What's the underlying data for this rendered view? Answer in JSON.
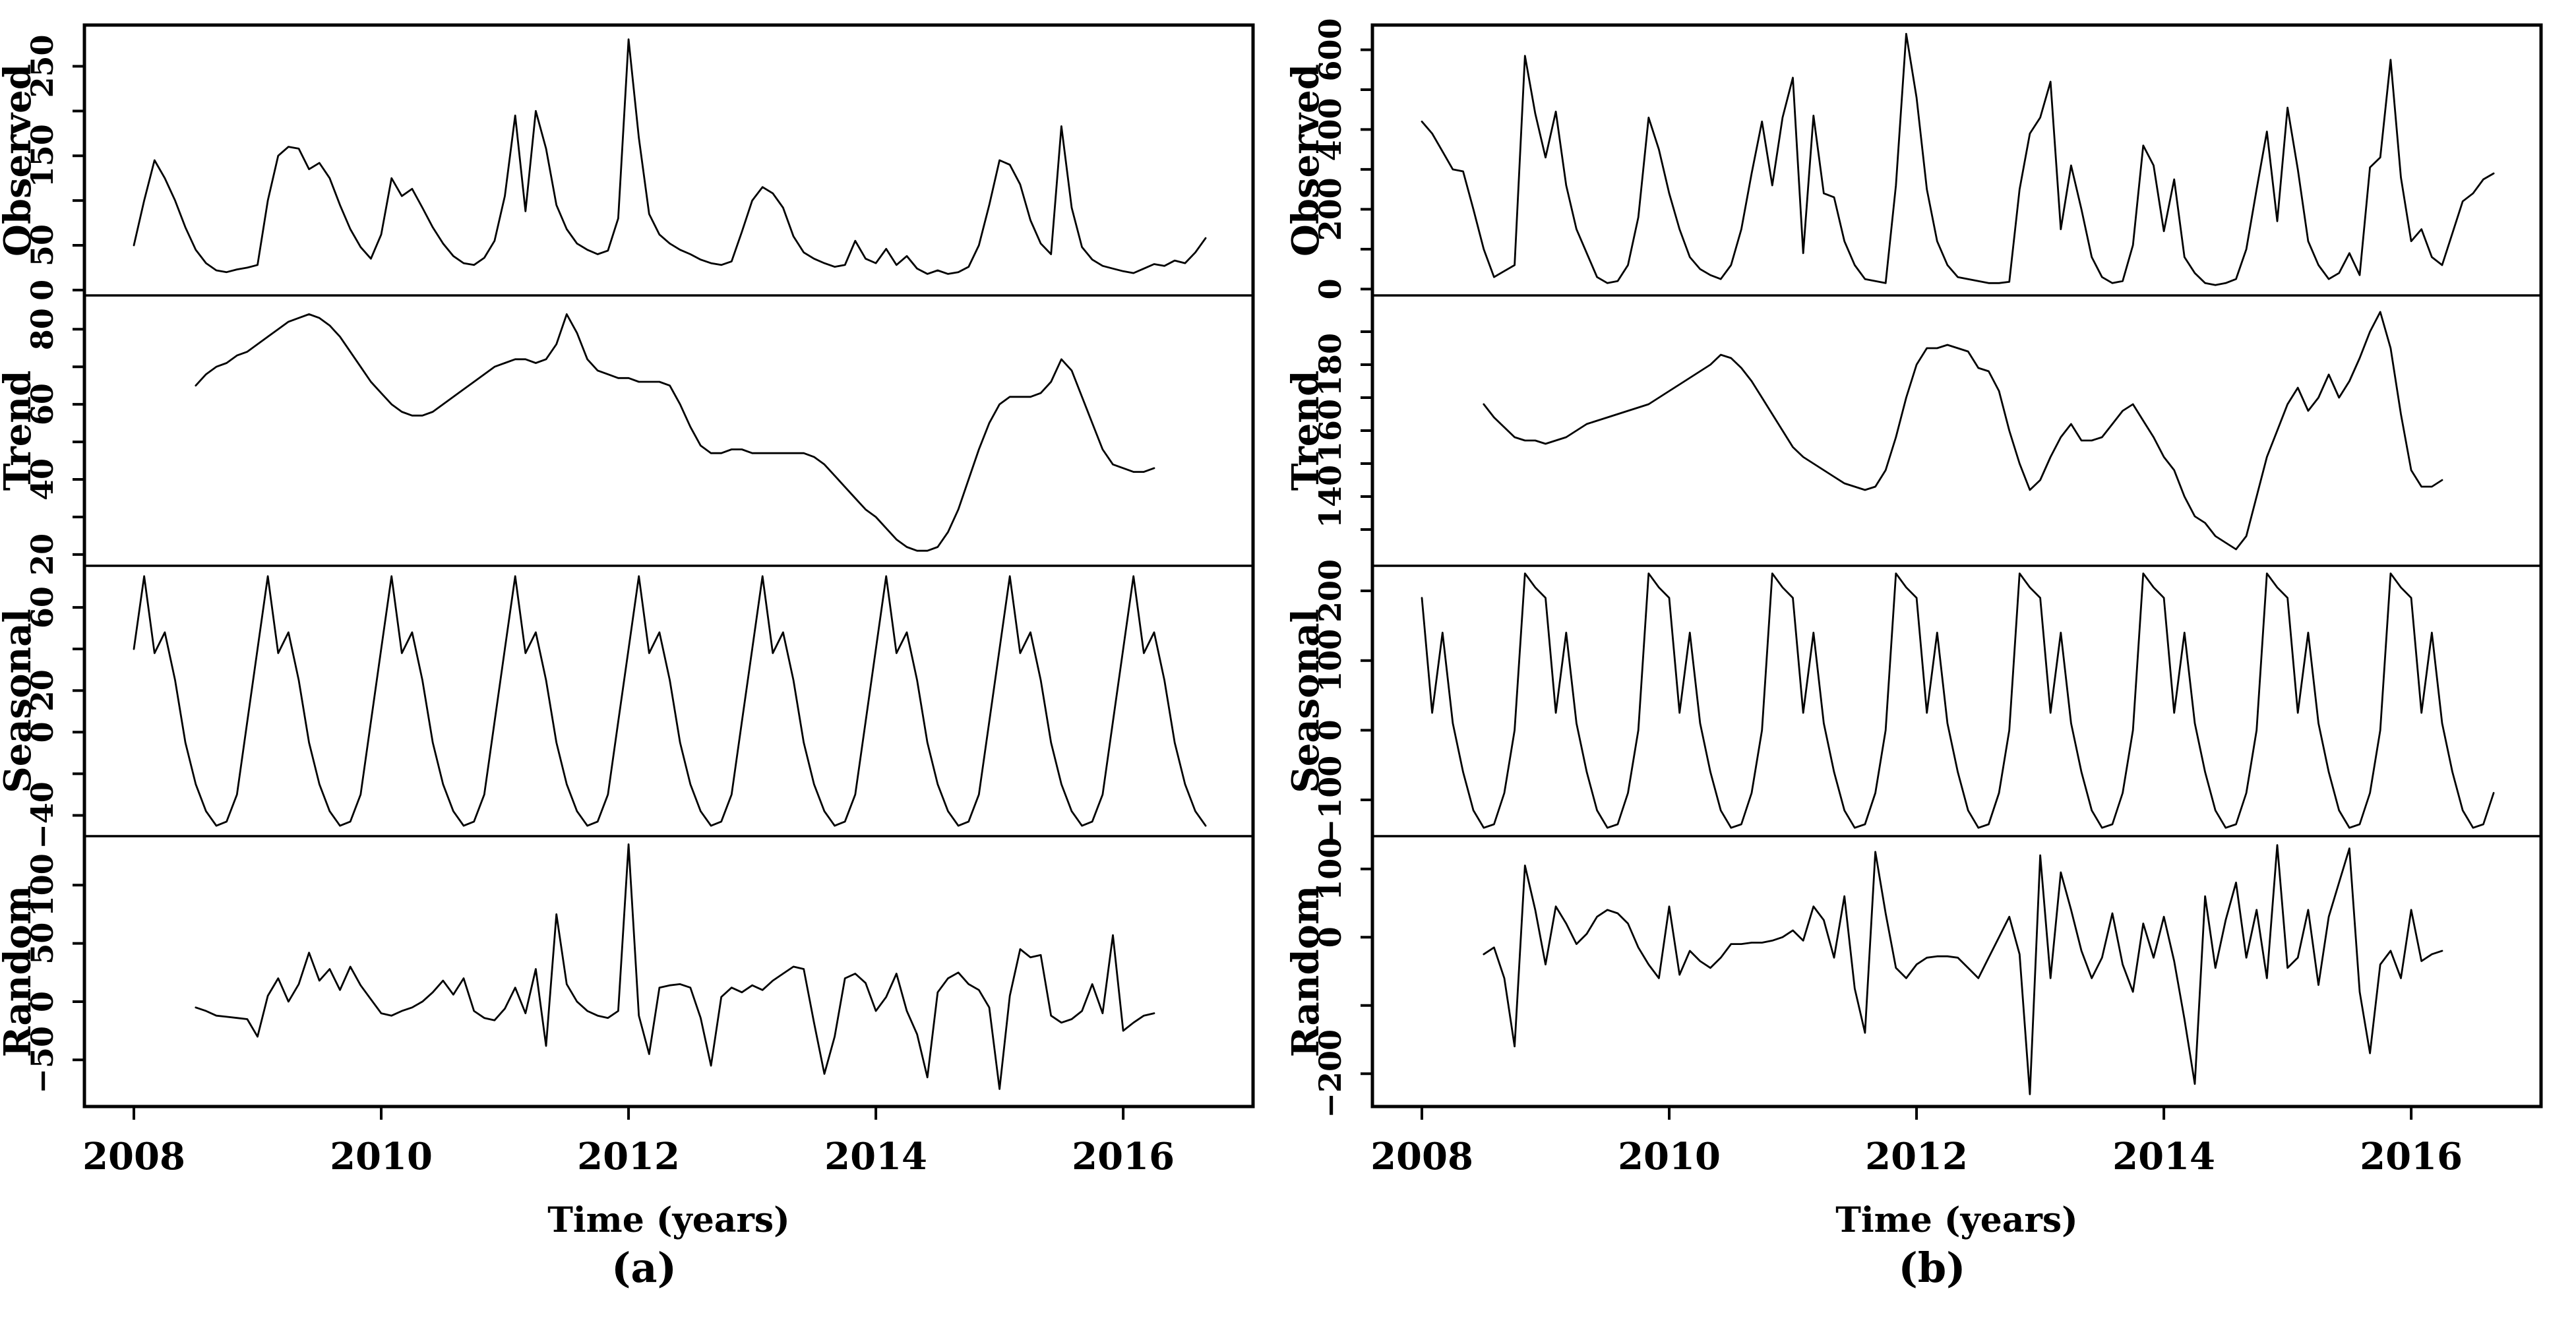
{
  "colors": {
    "line": "#000000",
    "background": "#ffffff",
    "text": "#000000"
  },
  "captions": {
    "a": "(a)",
    "b": "(b)"
  },
  "chart_data": [
    {
      "id": "a",
      "type": "line",
      "caption": "(a)",
      "xlabel": "Time (years)",
      "xlim": [
        2007.6,
        2017.05
      ],
      "xticks": [
        2008,
        2010,
        2012,
        2014,
        2016
      ],
      "x_unit": "monthly",
      "panels": [
        {
          "name": "Observed",
          "ylim": [
            -6,
            296
          ],
          "yticks": [
            {
              "v": 0,
              "t": "0"
            },
            {
              "v": 50,
              "t": "50"
            },
            {
              "v": 100,
              "t": ""
            },
            {
              "v": 150,
              "t": "150"
            },
            {
              "v": 200,
              "t": ""
            },
            {
              "v": 250,
              "t": "250"
            }
          ],
          "series_start": 2008.0,
          "values": [
            50,
            100,
            145,
            125,
            100,
            70,
            45,
            30,
            22,
            20,
            23,
            25,
            28,
            100,
            150,
            160,
            158,
            135,
            142,
            125,
            95,
            68,
            48,
            35,
            62,
            125,
            105,
            113,
            92,
            70,
            52,
            38,
            30,
            28,
            36,
            55,
            105,
            195,
            88,
            200,
            158,
            95,
            68,
            52,
            45,
            40,
            44,
            80,
            280,
            170,
            85,
            62,
            52,
            45,
            40,
            34,
            30,
            28,
            32,
            65,
            100,
            115,
            108,
            92,
            60,
            42,
            35,
            30,
            26,
            28,
            55,
            35,
            30,
            46,
            28,
            38,
            24,
            18,
            22,
            18,
            20,
            26,
            50,
            95,
            145,
            140,
            118,
            78,
            52,
            40,
            183,
            92,
            48,
            34,
            27,
            24,
            21,
            19,
            24,
            29,
            27,
            33,
            30,
            42,
            58
          ]
        },
        {
          "name": "Trend",
          "ylim": [
            17,
            89
          ],
          "yticks": [
            {
              "v": 20,
              "t": "20"
            },
            {
              "v": 30,
              "t": ""
            },
            {
              "v": 40,
              "t": "40"
            },
            {
              "v": 50,
              "t": ""
            },
            {
              "v": 60,
              "t": "60"
            },
            {
              "v": 70,
              "t": ""
            },
            {
              "v": 80,
              "t": "80"
            }
          ],
          "series_start": 2008.5,
          "values": [
            65,
            68,
            70,
            71,
            73,
            74,
            76,
            78,
            80,
            82,
            83,
            84,
            83,
            81,
            78,
            74,
            70,
            66,
            63,
            60,
            58,
            57,
            57,
            58,
            60,
            62,
            64,
            66,
            68,
            70,
            71,
            72,
            72,
            71,
            72,
            76,
            84,
            79,
            72,
            69,
            68,
            67,
            67,
            66,
            66,
            66,
            65,
            60,
            54,
            49,
            47,
            47,
            48,
            48,
            47,
            47,
            47,
            47,
            47,
            47,
            46,
            44,
            41,
            38,
            35,
            32,
            30,
            27,
            24,
            22,
            21,
            21,
            22,
            26,
            32,
            40,
            48,
            55,
            60,
            62,
            62,
            62,
            63,
            66,
            72,
            69,
            62,
            55,
            48,
            44,
            43,
            42,
            42,
            43
          ]
        },
        {
          "name": "Seasonal",
          "ylim": [
            -50,
            80
          ],
          "yticks": [
            {
              "v": -40,
              "t": "−40"
            },
            {
              "v": -20,
              "t": ""
            },
            {
              "v": 0,
              "t": "0"
            },
            {
              "v": 20,
              "t": "20"
            },
            {
              "v": 40,
              "t": ""
            },
            {
              "v": 60,
              "t": "60"
            }
          ],
          "series_start": 2008.0,
          "repeat_points": 105,
          "pattern": [
            40,
            75,
            38,
            48,
            25,
            -5,
            -25,
            -38,
            -45,
            -43,
            -30,
            5
          ]
        },
        {
          "name": "Random",
          "ylim": [
            -90,
            142
          ],
          "yticks": [
            {
              "v": -50,
              "t": "−50"
            },
            {
              "v": 0,
              "t": "0"
            },
            {
              "v": 50,
              "t": "50"
            },
            {
              "v": 100,
              "t": "100"
            }
          ],
          "series_start": 2008.5,
          "values": [
            -5,
            -8,
            -12,
            -13,
            -14,
            -15,
            -30,
            5,
            20,
            0,
            15,
            42,
            18,
            28,
            10,
            30,
            14,
            2,
            -10,
            -12,
            -8,
            -5,
            0,
            8,
            18,
            6,
            20,
            -8,
            -14,
            -16,
            -6,
            12,
            -10,
            28,
            -38,
            75,
            15,
            0,
            -8,
            -12,
            -14,
            -8,
            135,
            -12,
            -45,
            12,
            14,
            15,
            12,
            -14,
            -55,
            4,
            12,
            8,
            14,
            10,
            18,
            24,
            30,
            28,
            -18,
            -62,
            -30,
            20,
            24,
            16,
            -8,
            4,
            24,
            -8,
            -28,
            -65,
            8,
            20,
            25,
            15,
            10,
            -5,
            -75,
            5,
            45,
            38,
            40,
            -12,
            -18,
            -15,
            -8,
            15,
            -10,
            57,
            -25,
            -18,
            -12,
            -10
          ]
        }
      ]
    },
    {
      "id": "b",
      "type": "line",
      "caption": "(b)",
      "xlabel": "Time (years)",
      "xlim": [
        2007.6,
        2017.05
      ],
      "xticks": [
        2008,
        2010,
        2012,
        2014,
        2016
      ],
      "x_unit": "monthly",
      "panels": [
        {
          "name": "Observed",
          "ylim": [
            -16,
            662
          ],
          "yticks": [
            {
              "v": 0,
              "t": "0"
            },
            {
              "v": 100,
              "t": ""
            },
            {
              "v": 200,
              "t": "200"
            },
            {
              "v": 300,
              "t": ""
            },
            {
              "v": 400,
              "t": "400"
            },
            {
              "v": 500,
              "t": ""
            },
            {
              "v": 600,
              "t": "600"
            }
          ],
          "series_start": 2008.0,
          "values": [
            420,
            390,
            345,
            300,
            295,
            200,
            100,
            30,
            45,
            60,
            585,
            440,
            330,
            445,
            260,
            150,
            90,
            30,
            15,
            20,
            60,
            180,
            430,
            350,
            240,
            150,
            80,
            50,
            35,
            25,
            60,
            150,
            290,
            420,
            260,
            430,
            530,
            90,
            435,
            240,
            230,
            120,
            60,
            25,
            20,
            15,
            260,
            640,
            480,
            250,
            120,
            60,
            30,
            25,
            20,
            15,
            15,
            18,
            250,
            390,
            430,
            520,
            150,
            310,
            200,
            80,
            30,
            15,
            20,
            110,
            360,
            310,
            145,
            275,
            80,
            40,
            15,
            10,
            15,
            25,
            100,
            250,
            395,
            170,
            455,
            300,
            120,
            60,
            25,
            40,
            90,
            35,
            305,
            330,
            575,
            280,
            120,
            150,
            80,
            60,
            140,
            220,
            240,
            275,
            290
          ]
        },
        {
          "name": "Trend",
          "ylim": [
            119,
            201
          ],
          "yticks": [
            {
              "v": 130,
              "t": ""
            },
            {
              "v": 140,
              "t": "140"
            },
            {
              "v": 150,
              "t": ""
            },
            {
              "v": 160,
              "t": "160"
            },
            {
              "v": 170,
              "t": ""
            },
            {
              "v": 180,
              "t": "180"
            },
            {
              "v": 190,
              "t": ""
            }
          ],
          "series_start": 2008.5,
          "values": [
            168,
            164,
            161,
            158,
            157,
            157,
            156,
            157,
            158,
            160,
            162,
            163,
            164,
            165,
            166,
            167,
            168,
            170,
            172,
            174,
            176,
            178,
            180,
            183,
            182,
            179,
            175,
            170,
            165,
            160,
            155,
            152,
            150,
            148,
            146,
            144,
            143,
            142,
            143,
            148,
            158,
            170,
            180,
            185,
            185,
            186,
            185,
            184,
            179,
            178,
            172,
            160,
            150,
            142,
            145,
            152,
            158,
            162,
            157,
            157,
            158,
            162,
            166,
            168,
            163,
            158,
            152,
            148,
            140,
            134,
            132,
            128,
            126,
            124,
            128,
            140,
            152,
            160,
            168,
            173,
            166,
            170,
            177,
            170,
            175,
            182,
            190,
            196,
            185,
            165,
            148,
            143,
            143,
            145
          ]
        },
        {
          "name": "Seasonal",
          "ylim": [
            -152,
            236
          ],
          "yticks": [
            {
              "v": -100,
              "t": "−100"
            },
            {
              "v": 0,
              "t": "0"
            },
            {
              "v": 100,
              "t": "100"
            },
            {
              "v": 200,
              "t": "200"
            }
          ],
          "series_start": 2008.0,
          "repeat_points": 105,
          "pattern": [
            190,
            25,
            140,
            10,
            -60,
            -115,
            -140,
            -135,
            -90,
            0,
            225,
            205
          ]
        },
        {
          "name": "Random",
          "ylim": [
            -248,
            148
          ],
          "yticks": [
            {
              "v": -200,
              "t": "−200"
            },
            {
              "v": -100,
              "t": ""
            },
            {
              "v": 0,
              "t": "0"
            },
            {
              "v": 100,
              "t": "100"
            }
          ],
          "series_start": 2008.5,
          "values": [
            -25,
            -15,
            -60,
            -160,
            105,
            40,
            -40,
            45,
            20,
            -10,
            5,
            30,
            40,
            35,
            20,
            -15,
            -40,
            -60,
            45,
            -55,
            -20,
            -35,
            -45,
            -30,
            -10,
            -10,
            -8,
            -8,
            -5,
            0,
            10,
            -5,
            45,
            25,
            -30,
            60,
            -75,
            -140,
            125,
            35,
            -45,
            -60,
            -40,
            -30,
            -28,
            -28,
            -30,
            -45,
            -60,
            -30,
            0,
            30,
            -25,
            -230,
            120,
            -60,
            95,
            40,
            -20,
            -60,
            -30,
            35,
            -40,
            -80,
            20,
            -30,
            30,
            -35,
            -120,
            -215,
            60,
            -45,
            25,
            80,
            -30,
            40,
            -60,
            135,
            -45,
            -30,
            40,
            -70,
            30,
            80,
            130,
            -80,
            -170,
            -40,
            -20,
            -60,
            40,
            -35,
            -25,
            -20
          ]
        }
      ]
    }
  ]
}
